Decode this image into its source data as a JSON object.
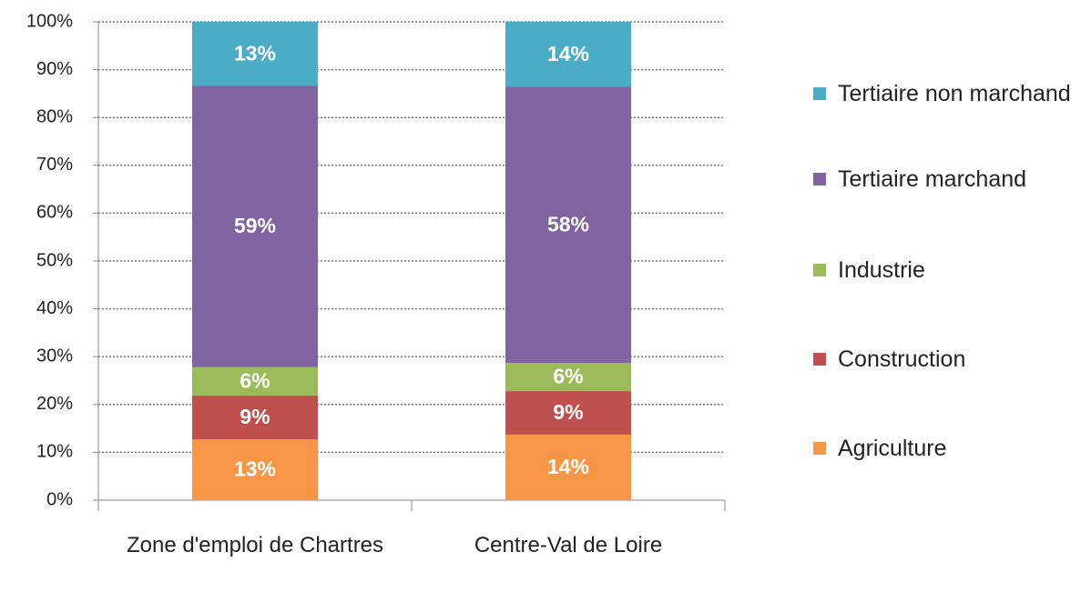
{
  "chart_data": {
    "type": "stacked_bar",
    "categories": [
      "Zone d'emploi de Chartres",
      "Centre-Val de Loire"
    ],
    "series": [
      {
        "name": "Agriculture",
        "color": "#f79646",
        "values": [
          12.7,
          13.7
        ],
        "value_labels": [
          "13%",
          "14%"
        ]
      },
      {
        "name": "Construction",
        "color": "#c0504d",
        "values": [
          9.2,
          9.1
        ],
        "value_labels": [
          "9%",
          "9%"
        ]
      },
      {
        "name": "Industrie",
        "color": "#9bbb59",
        "values": [
          5.9,
          5.9
        ],
        "value_labels": [
          "6%",
          "6%"
        ]
      },
      {
        "name": "Tertiaire marchand",
        "color": "#8064a2",
        "values": [
          58.8,
          57.7
        ],
        "value_labels": [
          "59%",
          "58%"
        ]
      },
      {
        "name": "Tertiaire non marchand",
        "color": "#4bacc6",
        "values": [
          13.4,
          13.6
        ],
        "value_labels": [
          "13%",
          "14%"
        ]
      }
    ],
    "ylim": [
      0,
      100
    ],
    "yticks": [
      {
        "value": 0,
        "label": "0%"
      },
      {
        "value": 10,
        "label": "10%"
      },
      {
        "value": 20,
        "label": "20%"
      },
      {
        "value": 30,
        "label": "30%"
      },
      {
        "value": 40,
        "label": "40%"
      },
      {
        "value": 50,
        "label": "50%"
      },
      {
        "value": 60,
        "label": "60%"
      },
      {
        "value": 70,
        "label": "70%"
      },
      {
        "value": 80,
        "label": "80%"
      },
      {
        "value": 90,
        "label": "90%"
      },
      {
        "value": 100,
        "label": "100%"
      }
    ],
    "grid": true,
    "legend": "right"
  }
}
